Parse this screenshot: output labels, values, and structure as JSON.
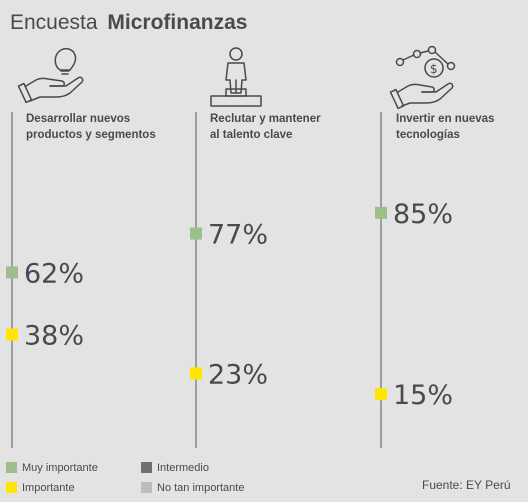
{
  "title_light": "Encuesta",
  "title_bold": "Microfinanzas",
  "source": "Fuente: EY Perú",
  "colors": {
    "muy_importante": "#9dc08b",
    "importante": "#ffe600",
    "intermedio": "#707070",
    "no_tan_importante": "#bdbdbd",
    "text": "#4a4a4a",
    "background": "#e3e3e3"
  },
  "legend": [
    {
      "label": "Muy importante",
      "color_key": "muy_importante"
    },
    {
      "label": "Intermedio",
      "color_key": "intermedio"
    },
    {
      "label": "Importante",
      "color_key": "importante"
    },
    {
      "label": "No tan importante",
      "color_key": "no_tan_importante"
    }
  ],
  "chart_data": {
    "type": "scatter",
    "title": "Encuesta Microfinanzas",
    "ylim": [
      0,
      100
    ],
    "categories": [
      {
        "lines": [
          "Desarrollar nuevos",
          "productos y segmentos"
        ],
        "icon": "hand-lightbulb-icon"
      },
      {
        "lines": [
          "Reclutar y mantener",
          "al talento clave"
        ],
        "icon": "person-podium-icon"
      },
      {
        "lines": [
          "Invertir en nuevas",
          "tecnologías"
        ],
        "icon": "hand-money-network-icon"
      }
    ],
    "series": [
      {
        "name": "Muy importante",
        "color_key": "muy_importante",
        "values": [
          62,
          77,
          85
        ],
        "labels": [
          "62%",
          "77%",
          "85%"
        ]
      },
      {
        "name": "Importante",
        "color_key": "importante",
        "values": [
          38,
          23,
          15
        ],
        "labels": [
          "38%",
          "23%",
          "15%"
        ]
      }
    ]
  }
}
